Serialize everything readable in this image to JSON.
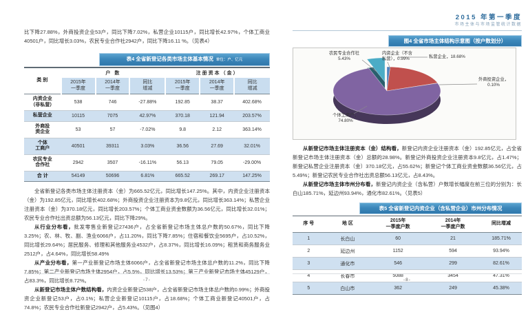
{
  "left_page": {
    "intro": "比下降27.88%，外商投资企业53户，同比下降7.02%，私营企业10115户，同比增长42.97%，个体工商业40501户，同比增长3.03%，农民专业合作社2942户，同比下降16.11 %。（见表4）",
    "table4": {
      "title": "表4 全省新登记各类市场主体基本情况",
      "unit": "单位：户、亿元",
      "row_header": "类  别",
      "group1": "户  数",
      "group2": "注册资本（金）",
      "sub_headers": [
        "2015年\n一季度",
        "2014年\n一季度",
        "同比\n增减",
        "2015年\n一季度",
        "2014年\n一季度",
        "同比\n增减"
      ],
      "rows": [
        {
          "label": "内资企业\n（非私营）",
          "v": [
            "538",
            "746",
            "-27.88%",
            "192.85",
            "38.37",
            "402.68%"
          ]
        },
        {
          "label": "私营企业",
          "v": [
            "10115",
            "7075",
            "42.97%",
            "370.18",
            "121.94",
            "203.57%"
          ]
        },
        {
          "label": "外商投\n资企业",
          "v": [
            "53",
            "57",
            "-7.02%",
            "9.8",
            "2.12",
            "363.14%"
          ]
        },
        {
          "label": "个体\n工商户",
          "v": [
            "40501",
            "39311",
            "3.03%",
            "36.56",
            "27.69",
            "32.01%"
          ]
        },
        {
          "label": "农民专业\n合作社",
          "v": [
            "2942",
            "3507",
            "-16.11%",
            "56.13",
            "79.05",
            "-29.00%"
          ]
        },
        {
          "label": "合  计",
          "v": [
            "54149",
            "50696",
            "6.81%",
            "665.52",
            "269.17",
            "147.25%"
          ]
        }
      ]
    },
    "paragraphs": [
      {
        "lead": "",
        "text": "全省新登记各类市场主体注册资本（金）为665.52亿元，同比增长147.25%。其中，内资企业注册资本（金）为192.85亿元，同比增长402.68%；外商投资企业注册资本为9.8亿元，同比增长363.14%；私营企业注册资本（金）为370.18亿元，同比增长203.57%；个体工商业资金数额为36.56亿元，同比增长32.01%；农民专业合作社出资总额为56.13亿元，同比下降29%。"
      },
      {
        "lead": "从行业分布看，",
        "text": "批发零售业新登记27436户，占全省新登记市场主体总户数的50.67%，同比下降3.25%；农、林、牧、副、渔业6066户，占11.20%，同比下降7.85%；住宿和餐饮业5695户，占10.52%，同比增长29.64%；居民服务、修理和其他服务业4532户，占8.37%，同比增长16.09%；租赁和商务服务业2512户，占4.64%，同比增长58.49%"
      },
      {
        "lead": "从产业分布看，",
        "text": "第一产业新登记市场主体6066户，占全省新登记市场主体总户数的11.2%，同比下降7.85%；第二产业新登记市场主体2954户，占5.5%，同比增长13.53%；第三产业新登记市场主体45129户，占83.3%，同比增长8.72%。"
      },
      {
        "lead": "从新登记市场主体户数结构看，",
        "text": "内资企业新登记538户，占全省新登记市场主体总户数的0.99%；外商投资企业新登记53户，占0.1%；私营企业新登记10115户，占18.68%；个体工商业新登记40501户，占74.8%；农民专业合作社新登记2942户，占5.43%。（见图4）"
      }
    ],
    "page_number": "-7-"
  },
  "right_page": {
    "header_title": "2015 年第一季度",
    "header_subtitle": "市场主体与市场监管统计数据",
    "figure_title": "图4 全省市场主体结构示意图（按户数划分）",
    "paragraphs": [
      {
        "lead": "从新登记市场主体注册资本（金）结构看，",
        "text": "新登记内资企业注册资本（金）192.85亿元，占全省新登记市场主体注册资本（金）总额的28.98%。新登记外商投资企业注册资本9.8亿元，占1.47%；新登记私营企业注册资本（金）370.18亿元，占55.62%；新登记个体工商业资金数额36.56亿元，占5.49%；新登记农民专业合作社出资总额56.13亿元，占8.43%。"
      },
      {
        "lead": "从新登记市场主体市州分布看，",
        "text": "新登记内资企业（含私营）户数增长幅度在前三位的分别为：长白山185.71%，延边州93.94%，通化市82.61%。（见表5）"
      }
    ],
    "table5": {
      "title": "表5 全省新登记内资企业（含私营企业）市州分布情况",
      "headers": [
        "序  号",
        "地  区",
        "2015年\n一季度户数",
        "2014年\n一季度户数",
        "同比增减"
      ],
      "rows": [
        [
          "1",
          "长白山",
          "60",
          "21",
          "185.71%"
        ],
        [
          "2",
          "延边州",
          "1152",
          "594",
          "93.94%"
        ],
        [
          "3",
          "通化市",
          "546",
          "299",
          "82.61%"
        ],
        [
          "4",
          "长春市",
          "5088",
          "3454",
          "47.31%"
        ],
        [
          "5",
          "白山市",
          "362",
          "249",
          "45.38%"
        ]
      ]
    },
    "page_number": "-8-"
  },
  "chart_data": {
    "type": "pie",
    "title": "图4 全省市场主体结构示意图（按户数划分）",
    "legend_position": "callouts",
    "slices": [
      {
        "label": "内资企业（不含私营）",
        "value": 0.99,
        "color": "#4F81BD",
        "callout": "内资企业（不含\n私营），0.99%",
        "exploded": false
      },
      {
        "label": "私营企业",
        "value": 18.68,
        "color": "#C0504D",
        "callout": "私营企业，18.68%",
        "exploded": false
      },
      {
        "label": "外商投资企业",
        "value": 0.1,
        "color": "#9BBB59",
        "callout": "外商投资企业，\n0.10%",
        "exploded": false
      },
      {
        "label": "个体工商户",
        "value": 74.8,
        "color": "#8064A2",
        "callout": "个体工商户，\n74.80%",
        "exploded": false
      },
      {
        "label": "农民专业合作社",
        "value": 5.43,
        "color": "#4BACC6",
        "callout": "农民专业合作社\n5.43%",
        "exploded": true
      }
    ]
  }
}
